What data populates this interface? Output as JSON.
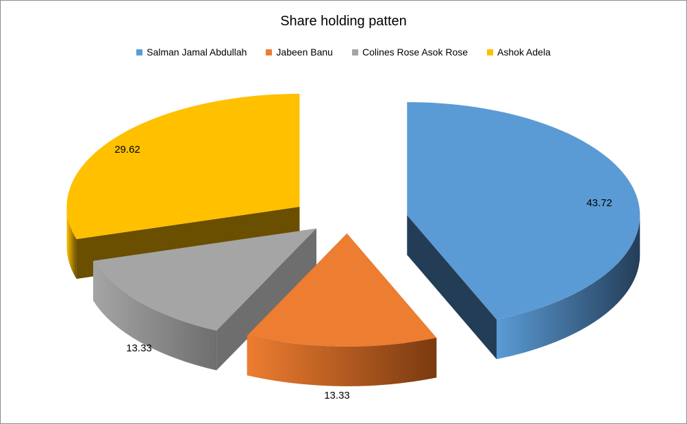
{
  "chart_data": {
    "type": "pie",
    "title": "Share holding patten",
    "legend_position": "top",
    "exploded": true,
    "three_d": true,
    "slices": [
      {
        "label": "Salman Jamal Abdullah",
        "value": 43.72,
        "value_label": "43.72",
        "color": "#5b9bd5",
        "side_color": "#243d57"
      },
      {
        "label": "Jabeen Banu",
        "value": 13.33,
        "value_label": "13.33",
        "color": "#ed7d31",
        "side_color": "#7a3a10"
      },
      {
        "label": "Colines Rose Asok Rose",
        "value": 13.33,
        "value_label": "13.33",
        "color": "#a5a5a5",
        "side_color": "#6e6e6e"
      },
      {
        "label": "Ashok Adela",
        "value": 29.62,
        "value_label": "29.62",
        "color": "#ffc000",
        "side_color": "#6a4f00"
      }
    ]
  }
}
